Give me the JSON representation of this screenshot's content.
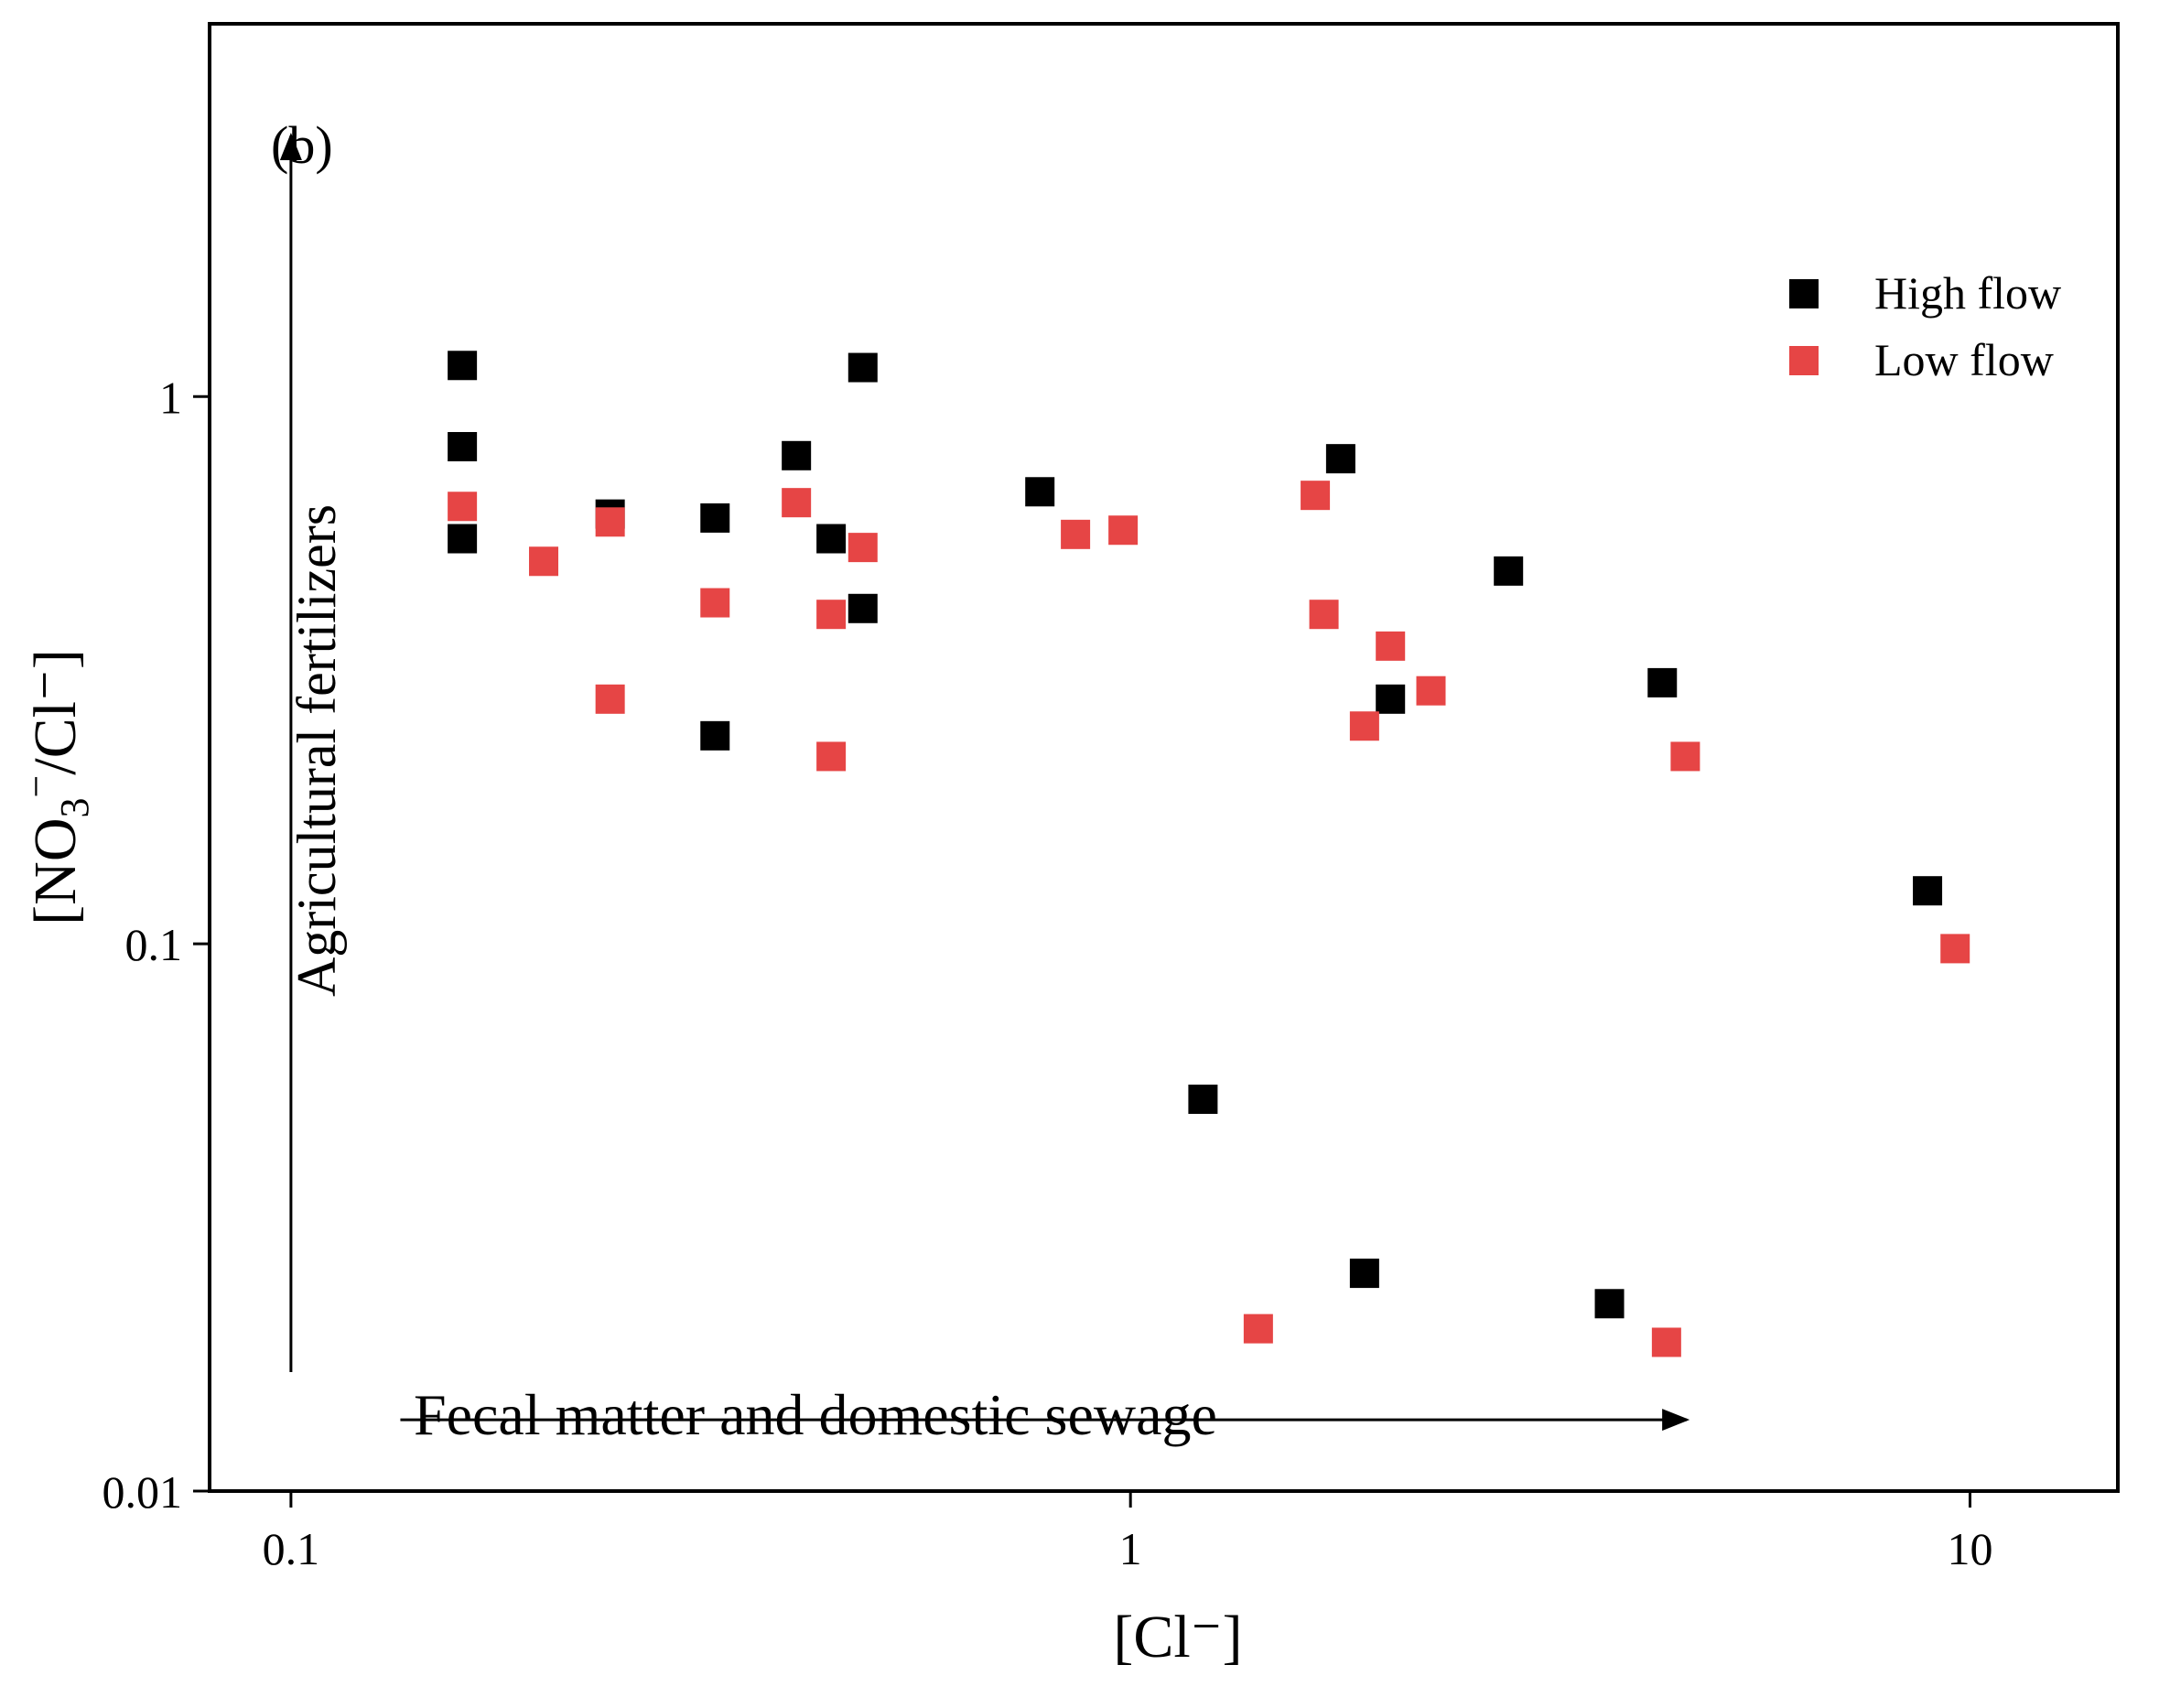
{
  "chart_data": {
    "type": "scatter",
    "panel_label": "(b)",
    "xlabel": "[Cl⁻]",
    "ylabel": {
      "open": "[NO",
      "sub": "3",
      "sup": "−",
      "close": "/Cl⁻]"
    },
    "x_scale": "log",
    "y_scale": "log",
    "xlim": [
      0.08,
      15
    ],
    "ylim": [
      0.01,
      4.8
    ],
    "x_ticks": [
      {
        "value": 0.1,
        "label": "0.1"
      },
      {
        "value": 1,
        "label": "1"
      },
      {
        "value": 10,
        "label": "10"
      }
    ],
    "y_ticks": [
      {
        "value": 0.01,
        "label": "0.01"
      },
      {
        "value": 0.1,
        "label": "0.1"
      },
      {
        "value": 1,
        "label": "1"
      }
    ],
    "grid": false,
    "legend_position": "top-right",
    "annotations": [
      {
        "text": "Agricultural fertilizers",
        "arrow": "vertical-up",
        "from": [
          0.1,
          0.0165
        ],
        "to": [
          0.1,
          3.0
        ]
      },
      {
        "text": "Fecal matter and domestic sewage",
        "arrow": "horizontal-right",
        "from": [
          0.135,
          0.0135
        ],
        "to": [
          4.6,
          0.0135
        ]
      }
    ],
    "series": [
      {
        "name": "High flow",
        "color": "#000000",
        "marker": "square",
        "points": [
          [
            0.16,
            1.14
          ],
          [
            0.16,
            0.81
          ],
          [
            0.16,
            0.55
          ],
          [
            0.24,
            0.61
          ],
          [
            0.32,
            0.6
          ],
          [
            0.32,
            0.24
          ],
          [
            0.4,
            0.78
          ],
          [
            0.44,
            0.55
          ],
          [
            0.48,
            1.13
          ],
          [
            0.48,
            0.41
          ],
          [
            0.78,
            0.67
          ],
          [
            1.22,
            0.052
          ],
          [
            1.78,
            0.77
          ],
          [
            1.9,
            0.025
          ],
          [
            2.04,
            0.28
          ],
          [
            2.82,
            0.48
          ],
          [
            3.72,
            0.022
          ],
          [
            4.3,
            0.3
          ],
          [
            8.9,
            0.125
          ]
        ]
      },
      {
        "name": "Low flow",
        "color": "#e64545",
        "marker": "square",
        "points": [
          [
            0.16,
            0.63
          ],
          [
            0.2,
            0.5
          ],
          [
            0.24,
            0.59
          ],
          [
            0.24,
            0.28
          ],
          [
            0.32,
            0.42
          ],
          [
            0.4,
            0.64
          ],
          [
            0.44,
            0.4
          ],
          [
            0.44,
            0.22
          ],
          [
            0.48,
            0.53
          ],
          [
            0.86,
            0.56
          ],
          [
            0.98,
            0.57
          ],
          [
            1.42,
            0.0198
          ],
          [
            1.66,
            0.66
          ],
          [
            1.7,
            0.4
          ],
          [
            1.9,
            0.25
          ],
          [
            2.04,
            0.35
          ],
          [
            2.28,
            0.29
          ],
          [
            4.35,
            0.0187
          ],
          [
            4.58,
            0.22
          ],
          [
            9.6,
            0.098
          ]
        ]
      }
    ]
  }
}
